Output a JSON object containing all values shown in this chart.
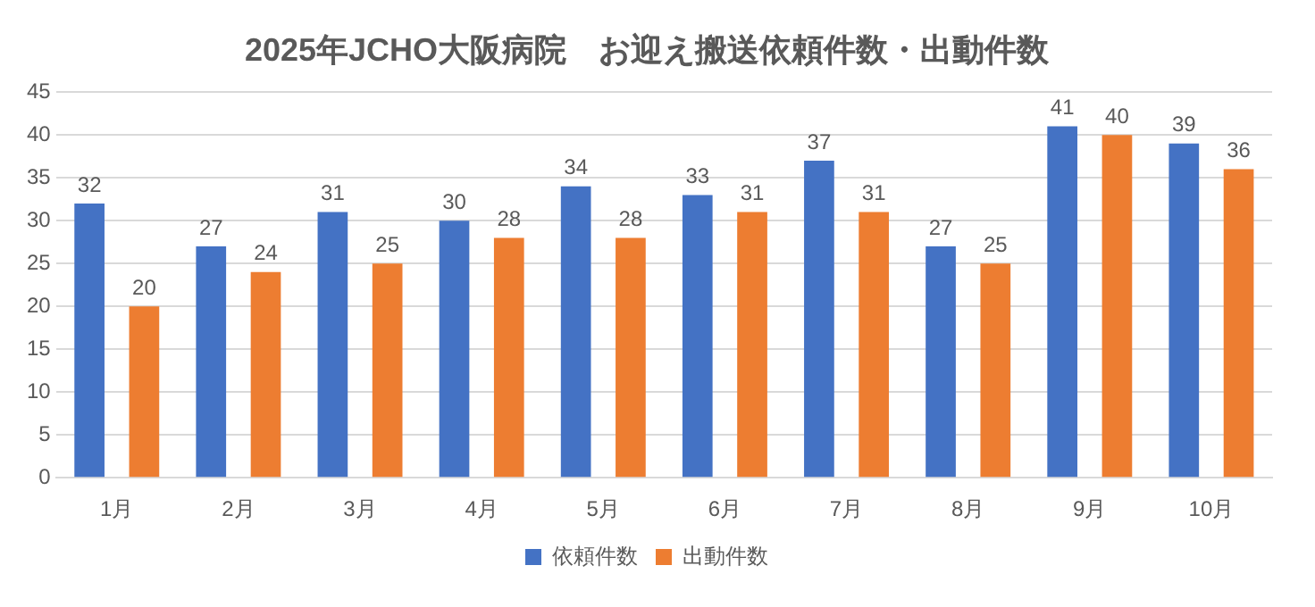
{
  "chart_data": {
    "type": "bar",
    "title": "2025年JCHO大阪病院　お迎え搬送依頼件数・出動件数",
    "categories": [
      "1月",
      "2月",
      "3月",
      "4月",
      "5月",
      "6月",
      "7月",
      "8月",
      "9月",
      "10月"
    ],
    "series": [
      {
        "name": "依頼件数",
        "color": "#4472c4",
        "values": [
          32,
          27,
          31,
          30,
          34,
          33,
          37,
          27,
          41,
          39
        ]
      },
      {
        "name": "出動件数",
        "color": "#ed7d31",
        "values": [
          20,
          24,
          25,
          28,
          28,
          31,
          31,
          25,
          40,
          36
        ]
      }
    ],
    "ylim": [
      0,
      45
    ],
    "yticks": [
      0,
      5,
      10,
      15,
      20,
      25,
      30,
      35,
      40,
      45
    ],
    "grid": "y",
    "legend": "bottom",
    "data_labels": true
  }
}
